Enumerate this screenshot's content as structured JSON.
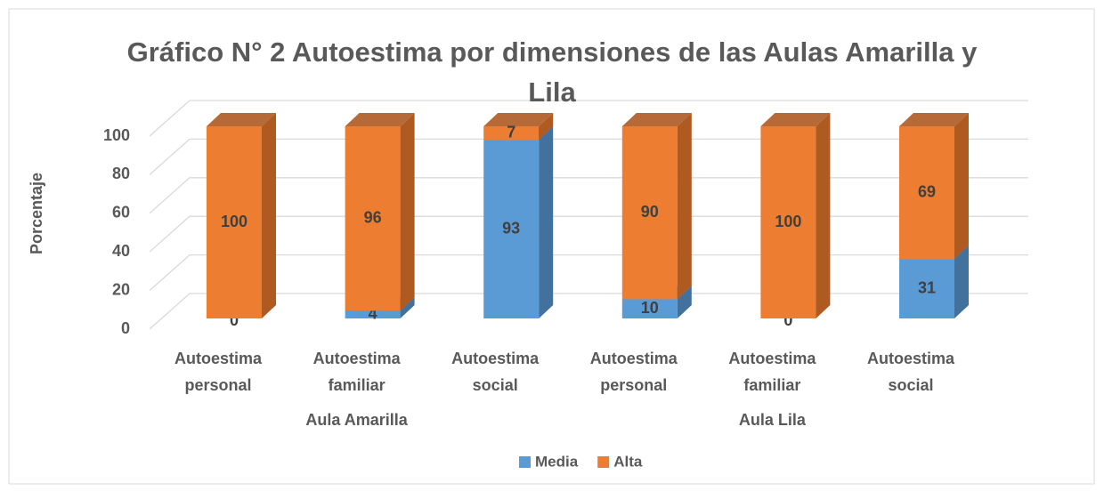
{
  "chart_data": {
    "type": "bar3d_stacked",
    "title": "Gráfico N° 2 Autoestima por dimensiones de las Aulas Amarilla y Lila",
    "ylabel": "Porcentaje",
    "groups": [
      {
        "label": "Aula Amarilla",
        "categories": [
          "Autoestima personal",
          "Autoestima familiar",
          "Autoestima social"
        ]
      },
      {
        "label": "Aula Lila",
        "categories": [
          "Autoestima personal",
          "Autoestima familiar",
          "Autoestima social"
        ]
      }
    ],
    "series": [
      {
        "name": "Media",
        "color": "#5b9bd5",
        "side": "#41719c",
        "values": [
          0,
          4,
          93,
          10,
          0,
          31
        ]
      },
      {
        "name": "Alta",
        "color": "#ed7d31",
        "side": "#ae5a21",
        "values": [
          100,
          96,
          7,
          90,
          100,
          69
        ]
      }
    ],
    "ylim": [
      0,
      100
    ],
    "yticks": [
      0,
      20,
      40,
      60,
      80,
      100
    ],
    "grid": true,
    "legend": "bottom"
  }
}
